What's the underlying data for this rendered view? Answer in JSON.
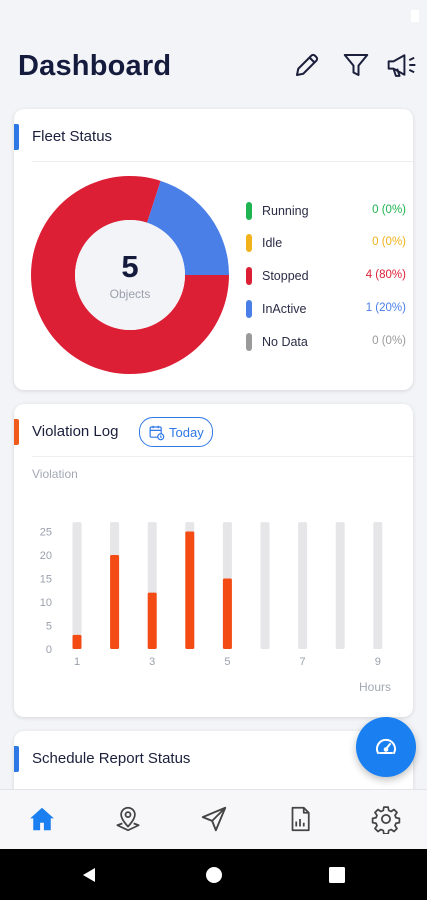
{
  "header": {
    "title": "Dashboard"
  },
  "fleet": {
    "title": "Fleet Status",
    "total": "5",
    "total_label": "Objects",
    "legend": [
      {
        "label": "Running",
        "value": "0 (0%)",
        "color": "#1fb451",
        "count": 0
      },
      {
        "label": "Idle",
        "value": "0 (0%)",
        "color": "#f2b21c",
        "count": 0
      },
      {
        "label": "Stopped",
        "value": "4 (80%)",
        "color": "#dd1f36",
        "count": 4
      },
      {
        "label": "InActive",
        "value": "1 (20%)",
        "color": "#4a7fe8",
        "count": 1
      },
      {
        "label": "No Data",
        "value": "0 (0%)",
        "color": "#9a9a9a",
        "count": 0
      }
    ]
  },
  "violation": {
    "title": "Violation Log",
    "filter_label": "Today",
    "accent_color": "#f05a1a"
  },
  "chart_data": {
    "type": "bar",
    "ylabel": "Violation",
    "xlabel": "Hours",
    "y_ticks": [
      "25",
      "20",
      "15",
      "10",
      "5",
      "0"
    ],
    "x_tick_labels": [
      "1",
      "",
      "3",
      "",
      "5",
      "",
      "7",
      "",
      "9"
    ],
    "x": [
      1,
      2,
      3,
      4,
      5,
      6,
      7,
      8,
      9
    ],
    "values": [
      3,
      20,
      12,
      25,
      15,
      0,
      0,
      0,
      0
    ],
    "ylim": [
      0,
      27
    ],
    "bar_color": "#f34b13",
    "track_color": "#e6e6e9"
  },
  "schedule": {
    "title": "Schedule Report Status"
  },
  "nav": [
    "home-icon",
    "map-pin-icon",
    "navigate-icon",
    "report-icon",
    "settings-icon"
  ],
  "colors": {
    "accent_blue": "#2e78e6",
    "primary": "#1a7ff0"
  }
}
